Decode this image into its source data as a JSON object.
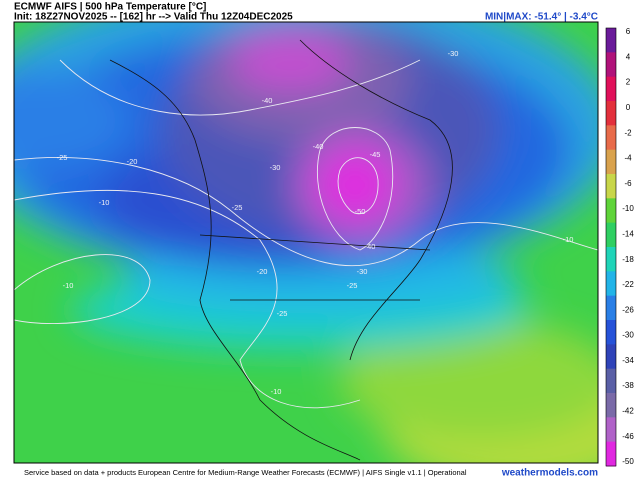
{
  "header": {
    "title": "ECMWF AIFS | 500 hPa Temperature [°C]",
    "init": "Init: 18Z27NOV2025 -- [162] hr --> Valid Thu 12Z04DEC2025",
    "minmax": "MIN|MAX: -51.4° | -3.4°C"
  },
  "colorbar": {
    "labels": [
      "6",
      "4",
      "2",
      "0",
      "-2",
      "-4",
      "-6",
      "-10",
      "-14",
      "-18",
      "-22",
      "-26",
      "-30",
      "-34",
      "-38",
      "-42",
      "-46",
      "-50"
    ],
    "colors": [
      "#6a1b9a",
      "#b0127a",
      "#e0105a",
      "#e3303c",
      "#e86b4a",
      "#d9a24d",
      "#c8d64a",
      "#5fd43a",
      "#2fcf62",
      "#1fd4b8",
      "#22b4e8",
      "#2a7fe6",
      "#2652d8",
      "#2f43b8",
      "#5a5fa6",
      "#7a6aa8",
      "#b062c8",
      "#e028e0"
    ]
  },
  "contours": [
    "-40",
    "-30",
    "-25",
    "-20",
    "-10",
    "-30",
    "-40",
    "-45",
    "-25",
    "-50",
    "-40",
    "-30",
    "-20",
    "-25",
    "-10",
    "-25",
    "-10",
    "-10"
  ],
  "footer": {
    "credit": "Service based on data + products European Centre for Medium-Range Weather Forecasts (ECMWF) | AIFS Single v1.1 | Operational",
    "brand": "weathermodels.com"
  }
}
